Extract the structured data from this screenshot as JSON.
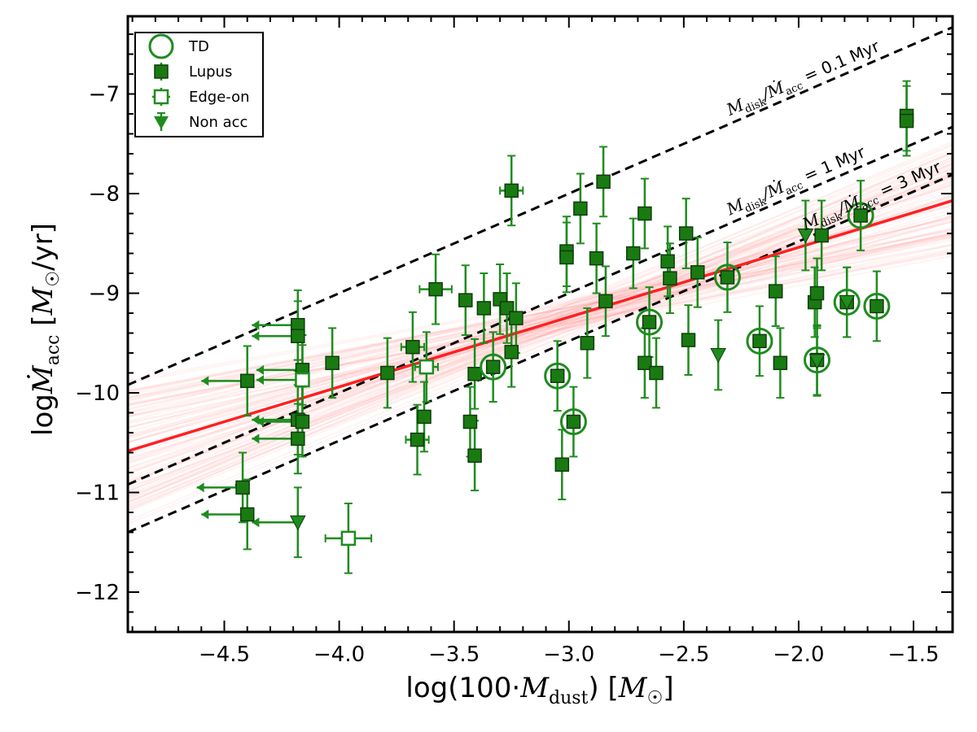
{
  "chart_data": {
    "type": "scatter",
    "xlabel": "log(100·M_dust) [M_☉]",
    "ylabel": "log Ṁ_acc [M_☉/yr]",
    "xlabel_parts": {
      "pre": "log(100·",
      "sym": "M",
      "sub": "dust",
      "post": ") [",
      "unit": "M",
      "unit_sub": "☉",
      "end": "]"
    },
    "ylabel_parts": {
      "pre": "log",
      "sym": "Ṁ",
      "sub": "acc",
      "mid": " [",
      "unit": "M",
      "unit_sub": "☉",
      "end": "/yr]"
    },
    "xlim": [
      -4.92,
      -1.33
    ],
    "ylim": [
      -12.4,
      -6.22
    ],
    "xticks": [
      -4.5,
      -4.0,
      -3.5,
      -3.0,
      -2.5,
      -2.0,
      -1.5
    ],
    "xtick_labels": [
      "−4.5",
      "−4.0",
      "−3.5",
      "−3.0",
      "−2.5",
      "−2.0",
      "−1.5"
    ],
    "yticks": [
      -12,
      -11,
      -10,
      -9,
      -8,
      -7
    ],
    "ytick_labels": [
      "−12",
      "−11",
      "−10",
      "−9",
      "−8",
      "−7"
    ],
    "colors": {
      "marker": "#1a7a12",
      "marker_edge": "#0d3d09",
      "errorbar": "#1e8c1e",
      "fit": "#ff2020",
      "fit_band": "#ff8080",
      "dashed": "#000000"
    },
    "legend": {
      "position": "top-left",
      "entries": [
        {
          "label": "TD",
          "marker": "open-circle"
        },
        {
          "label": "Lupus",
          "marker": "filled-square"
        },
        {
          "label": "Edge-on",
          "marker": "open-square"
        },
        {
          "label": "Non acc",
          "marker": "triangle-down"
        }
      ]
    },
    "fit_line": {
      "slope": 0.7,
      "intercept": -7.14
    },
    "dashed_lines": [
      {
        "label": "M_disk/Ṁ_acc = 0.1 Myr",
        "label_sym": "M",
        "label_sub": "disk",
        "label_mid": "/Ṁ",
        "label_sub2": "acc",
        "label_end": " = 0.1 Myr",
        "offset": -5.0,
        "label_x": -2.3
      },
      {
        "label": "M_disk/Ṁ_acc = 1 Myr",
        "label_sym": "M",
        "label_sub": "disk",
        "label_mid": "/Ṁ",
        "label_sub2": "acc",
        "label_end": " = 1 Myr",
        "offset": -6.0,
        "label_x": -2.3
      },
      {
        "label": "M_disk/Ṁ_acc = 3 Myr",
        "label_sym": "M",
        "label_sub": "disk",
        "label_mid": "/Ṁ",
        "label_sub2": "acc",
        "label_end": " = 3 Myr",
        "offset": -6.48,
        "label_x": -1.97
      }
    ],
    "series": [
      {
        "name": "Lupus",
        "marker": "filled-square",
        "points": [
          {
            "x": -4.42,
            "y": -10.95,
            "yerr": 0.35,
            "upper": true
          },
          {
            "x": -4.4,
            "y": -11.22,
            "yerr": 0.35,
            "upper": true
          },
          {
            "x": -4.4,
            "y": -9.88,
            "yerr": 0.35,
            "upper": true
          },
          {
            "x": -4.18,
            "y": -9.32,
            "yerr": 0.35,
            "upper": true
          },
          {
            "x": -4.18,
            "y": -9.43,
            "yerr": 0.35,
            "upper": true
          },
          {
            "x": -4.18,
            "y": -10.27,
            "yerr": 0.35,
            "upper": true
          },
          {
            "x": -4.18,
            "y": -10.46,
            "yerr": 0.35,
            "upper": true
          },
          {
            "x": -4.16,
            "y": -9.77,
            "yerr": 0.35,
            "upper": true
          },
          {
            "x": -4.16,
            "y": -10.29,
            "yerr": 0.35,
            "upper": true
          },
          {
            "x": -4.03,
            "y": -9.7,
            "yerr": 0.35
          },
          {
            "x": -3.79,
            "y": -9.8,
            "yerr": 0.35
          },
          {
            "x": -3.68,
            "y": -9.54,
            "yerr": 0.35,
            "xerr": 0.05
          },
          {
            "x": -3.66,
            "y": -10.47,
            "yerr": 0.35,
            "xerr": 0.05
          },
          {
            "x": -3.63,
            "y": -10.24,
            "yerr": 0.35
          },
          {
            "x": -3.58,
            "y": -8.96,
            "yerr": 0.35,
            "xerr": 0.07
          },
          {
            "x": -3.45,
            "y": -9.07,
            "yerr": 0.35
          },
          {
            "x": -3.43,
            "y": -10.29,
            "yerr": 0.35
          },
          {
            "x": -3.41,
            "y": -10.63,
            "yerr": 0.35
          },
          {
            "x": -3.41,
            "y": -9.81,
            "yerr": 0.35
          },
          {
            "x": -3.37,
            "y": -9.15,
            "yerr": 0.35
          },
          {
            "x": -3.3,
            "y": -9.06,
            "yerr": 0.35
          },
          {
            "x": -3.27,
            "y": -9.15,
            "yerr": 0.35
          },
          {
            "x": -3.25,
            "y": -9.59,
            "yerr": 0.35
          },
          {
            "x": -3.23,
            "y": -9.25,
            "yerr": 0.35
          },
          {
            "x": -3.25,
            "y": -7.97,
            "yerr": 0.35,
            "xerr": 0.05
          },
          {
            "x": -3.03,
            "y": -10.72,
            "yerr": 0.35
          },
          {
            "x": -3.01,
            "y": -8.58,
            "yerr": 0.35
          },
          {
            "x": -3.01,
            "y": -8.64,
            "yerr": 0.35
          },
          {
            "x": -2.95,
            "y": -8.15,
            "yerr": 0.35
          },
          {
            "x": -2.92,
            "y": -9.5,
            "yerr": 0.35
          },
          {
            "x": -2.88,
            "y": -8.65,
            "yerr": 0.35
          },
          {
            "x": -2.85,
            "y": -7.88,
            "yerr": 0.35
          },
          {
            "x": -2.84,
            "y": -9.08,
            "yerr": 0.35
          },
          {
            "x": -2.72,
            "y": -8.6,
            "yerr": 0.35
          },
          {
            "x": -2.67,
            "y": -8.2,
            "yerr": 0.35
          },
          {
            "x": -2.67,
            "y": -9.7,
            "yerr": 0.35
          },
          {
            "x": -2.62,
            "y": -9.8,
            "yerr": 0.35
          },
          {
            "x": -2.57,
            "y": -8.68,
            "yerr": 0.35
          },
          {
            "x": -2.56,
            "y": -8.85,
            "yerr": 0.35
          },
          {
            "x": -2.49,
            "y": -8.4,
            "yerr": 0.35
          },
          {
            "x": -2.48,
            "y": -9.47,
            "yerr": 0.35
          },
          {
            "x": -2.44,
            "y": -8.79,
            "yerr": 0.35
          },
          {
            "x": -2.08,
            "y": -9.7,
            "yerr": 0.35
          },
          {
            "x": -2.1,
            "y": -8.98,
            "yerr": 0.35
          },
          {
            "x": -1.93,
            "y": -9.09,
            "yerr": 0.35
          },
          {
            "x": -1.92,
            "y": -9.0,
            "yerr": 0.35
          },
          {
            "x": -1.9,
            "y": -8.42,
            "yerr": 0.35
          },
          {
            "x": -1.53,
            "y": -7.22,
            "yerr": 0.35
          },
          {
            "x": -1.53,
            "y": -7.27,
            "yerr": 0.35
          }
        ]
      },
      {
        "name": "TD",
        "marker": "open-circle",
        "points": [
          {
            "x": -3.33,
            "y": -9.74,
            "yerr": 0.35
          },
          {
            "x": -3.05,
            "y": -9.83,
            "yerr": 0.35
          },
          {
            "x": -2.98,
            "y": -10.29,
            "yerr": 0.35
          },
          {
            "x": -2.65,
            "y": -9.29,
            "yerr": 0.35
          },
          {
            "x": -2.31,
            "y": -8.84,
            "yerr": 0.35
          },
          {
            "x": -2.17,
            "y": -9.48,
            "yerr": 0.35
          },
          {
            "x": -1.92,
            "y": -9.67,
            "yerr": 0.35
          },
          {
            "x": -1.79,
            "y": -9.09,
            "yerr": 0.35
          },
          {
            "x": -1.73,
            "y": -8.22,
            "yerr": 0.35
          },
          {
            "x": -1.66,
            "y": -9.13,
            "yerr": 0.35
          }
        ]
      },
      {
        "name": "Edge-on",
        "marker": "open-square",
        "points": [
          {
            "x": -4.16,
            "y": -9.87,
            "yerr": 0.35,
            "upper": true
          },
          {
            "x": -3.96,
            "y": -11.46,
            "yerr": 0.35,
            "xerr": 0.1
          },
          {
            "x": -3.62,
            "y": -9.74,
            "yerr": 0.35,
            "xerr": 0.05
          }
        ]
      },
      {
        "name": "Non acc",
        "marker": "triangle-down",
        "points": [
          {
            "x": -4.18,
            "y": -11.3,
            "yerr": 0.35,
            "upper": true
          },
          {
            "x": -2.35,
            "y": -9.62,
            "yerr": 0.35
          },
          {
            "x": -1.97,
            "y": -8.42,
            "yerr": 0.35
          },
          {
            "x": -1.92,
            "y": -9.68,
            "yerr": 0.35
          },
          {
            "x": -1.79,
            "y": -9.09,
            "yerr": 0.35
          }
        ]
      }
    ]
  }
}
